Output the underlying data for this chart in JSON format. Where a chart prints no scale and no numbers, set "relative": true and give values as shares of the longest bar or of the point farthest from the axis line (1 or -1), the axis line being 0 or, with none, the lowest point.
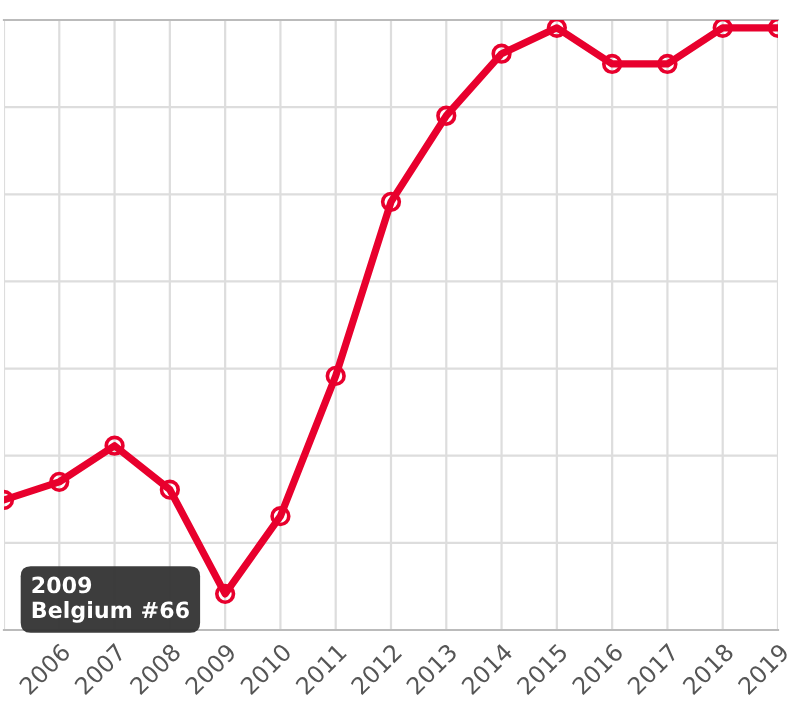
{
  "chart_data": {
    "type": "line",
    "relative": true,
    "categories": [
      null,
      "2006",
      "2007",
      "2008",
      "2009",
      "2010",
      "2011",
      "2012",
      "2013",
      "2014",
      "2015",
      "2016",
      "2017",
      "2018",
      "2019"
    ],
    "series": [
      {
        "color": "#e8002d",
        "values": [
          0.216,
          0.246,
          0.306,
          0.233,
          0.06,
          0.189,
          0.422,
          0.711,
          0.854,
          0.957,
          1,
          0.94,
          0.94,
          1,
          1
        ]
      }
    ],
    "marker": "circle",
    "line_style": "solid",
    "grid": true,
    "annotations": [
      {
        "text": "2009\nBelgium #66",
        "x": "2009",
        "y": 0.06
      }
    ]
  }
}
